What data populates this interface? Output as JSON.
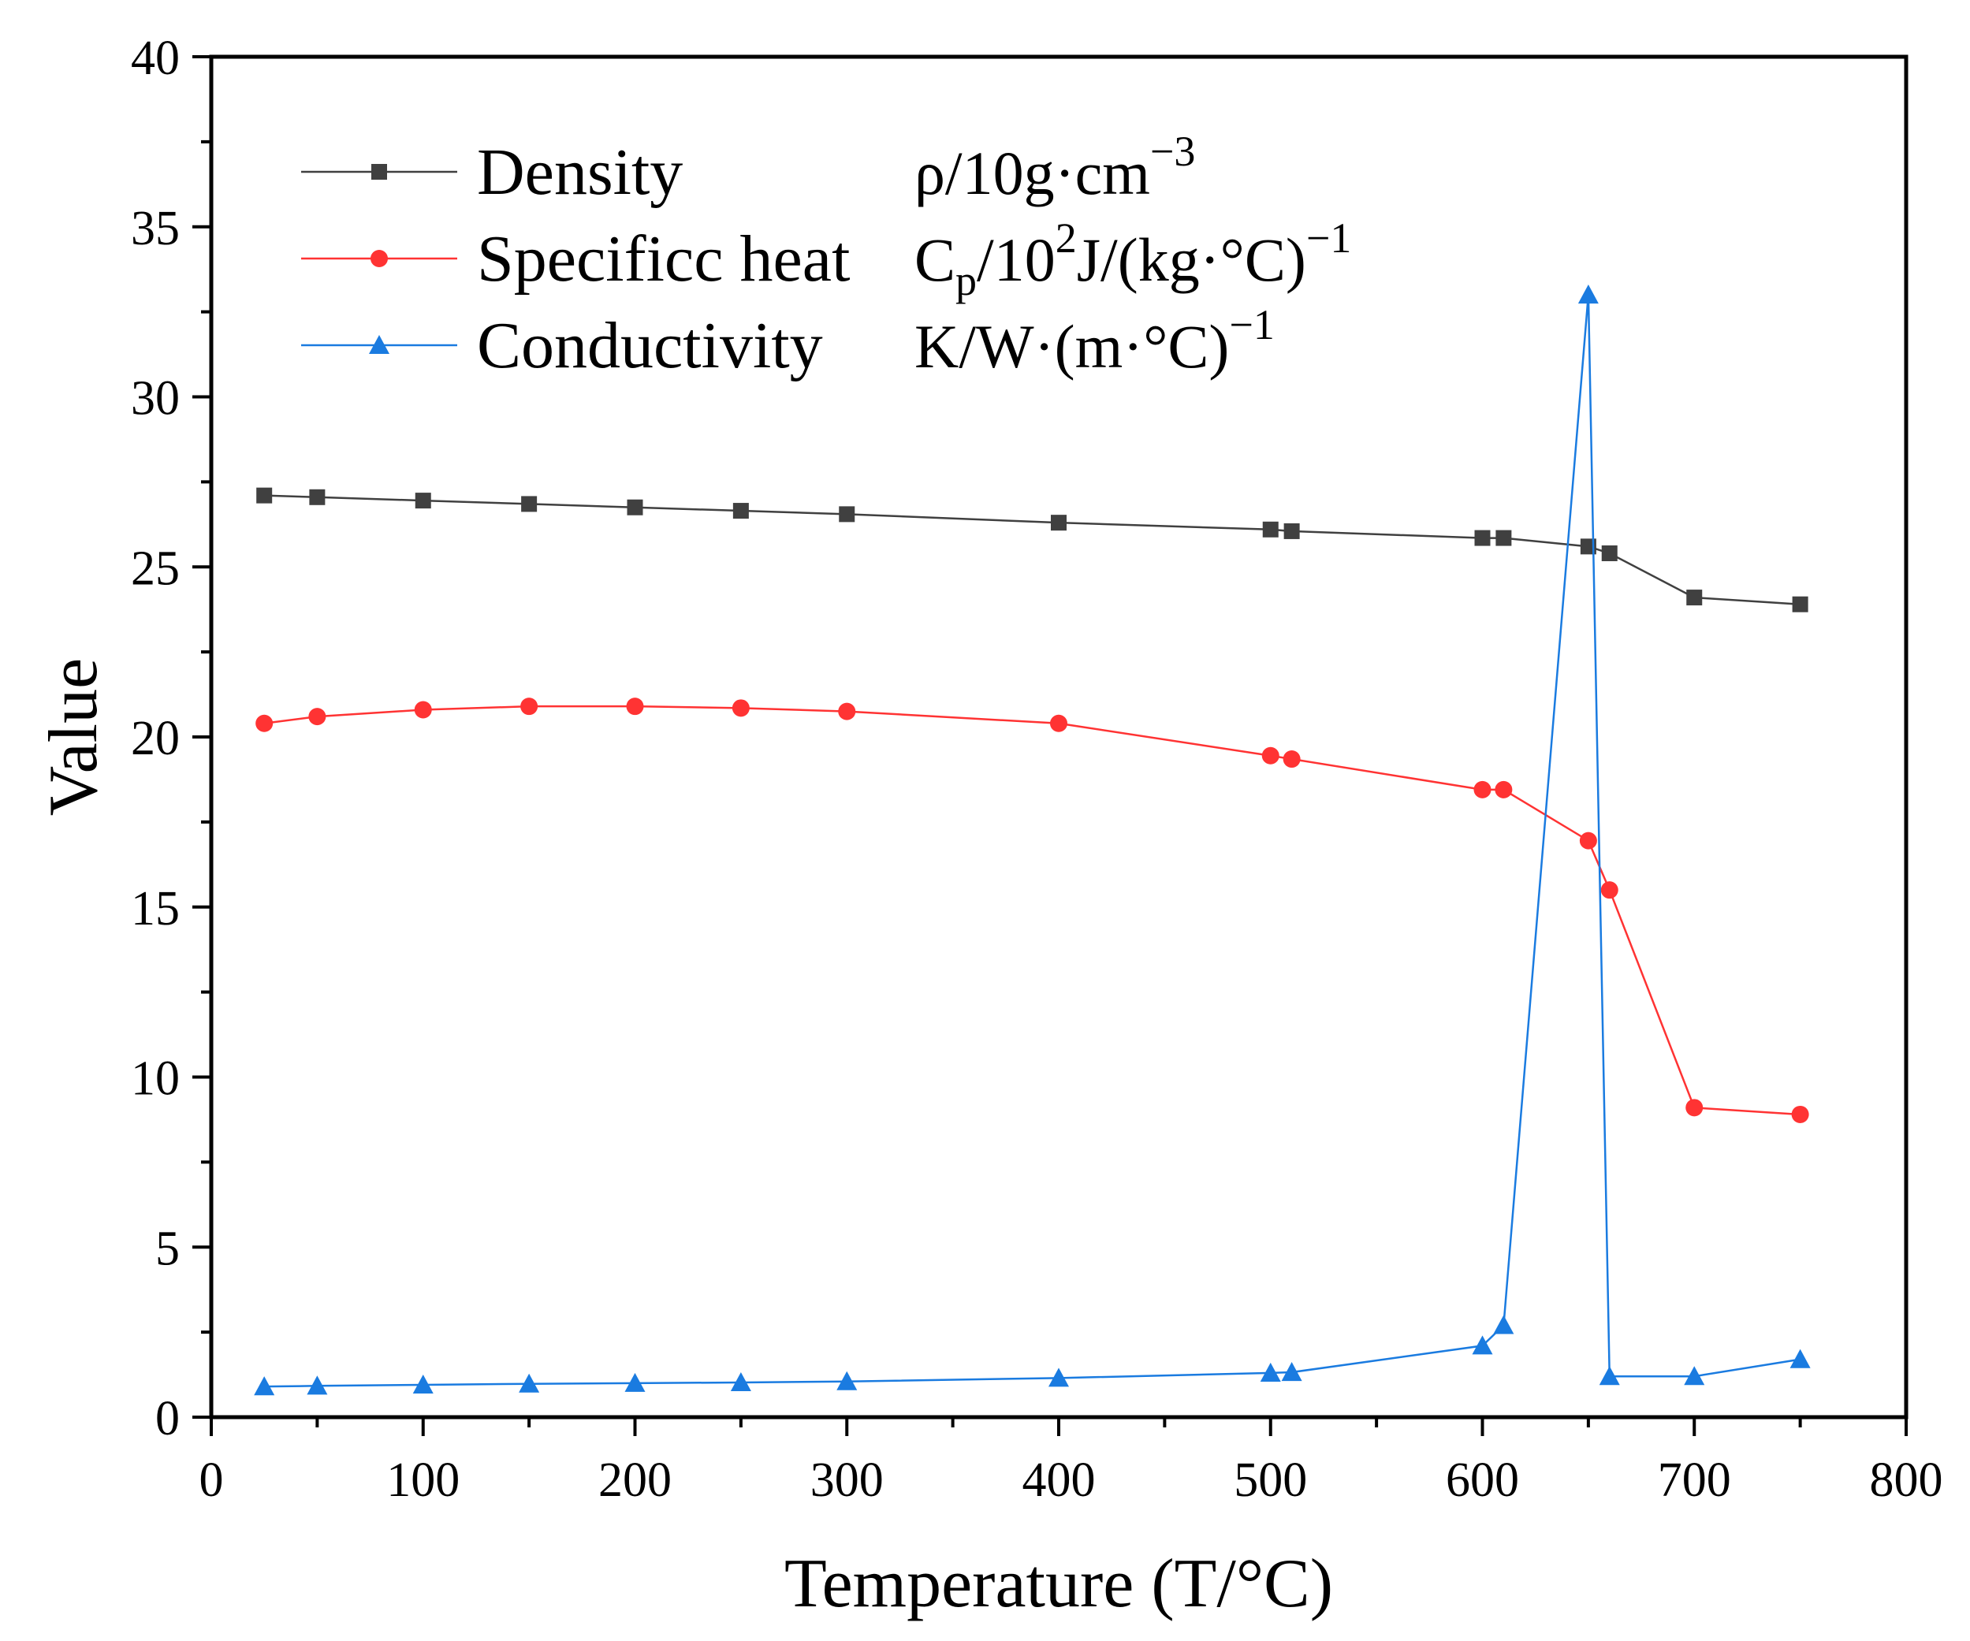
{
  "chart_data": {
    "type": "line",
    "xlabel": "Temperature (T/°C)",
    "ylabel": "Value",
    "xlim": [
      0,
      800
    ],
    "ylim": [
      0,
      40
    ],
    "x_ticks": [
      0,
      100,
      200,
      300,
      400,
      500,
      600,
      700,
      800
    ],
    "y_ticks": [
      0,
      5,
      10,
      15,
      20,
      25,
      30,
      35,
      40
    ],
    "grid": false,
    "legend_position": "top-left",
    "x": [
      25,
      50,
      100,
      150,
      200,
      250,
      300,
      400,
      500,
      510,
      600,
      610,
      650,
      660,
      700,
      750
    ],
    "series": [
      {
        "name": "Density",
        "unit": {
          "base": "ρ/10g·cm",
          "sup": "−3"
        },
        "color": "#404040",
        "marker": "square",
        "values": [
          27.1,
          27.05,
          26.95,
          26.85,
          26.75,
          26.65,
          26.55,
          26.3,
          26.1,
          26.05,
          25.85,
          25.85,
          25.6,
          25.4,
          24.1,
          23.9
        ]
      },
      {
        "name": "Specificc heat",
        "unit": {
          "base": "C",
          "sub": "p",
          "mid": "/10",
          "sup": "2",
          "mid2": "J/(kg·°C)",
          "sup2": "−1"
        },
        "color": "#ff3333",
        "marker": "circle",
        "values": [
          20.4,
          20.6,
          20.8,
          20.9,
          20.9,
          20.85,
          20.75,
          20.4,
          19.45,
          19.35,
          18.45,
          18.45,
          16.95,
          15.5,
          9.1,
          8.9
        ]
      },
      {
        "name": "Conductivity",
        "unit": {
          "base": "K/W·(m·°C)",
          "sup": "−1"
        },
        "color": "#1a7be0",
        "marker": "triangle",
        "values": [
          0.9,
          0.92,
          0.95,
          0.98,
          1.0,
          1.02,
          1.05,
          1.15,
          1.3,
          1.32,
          2.1,
          2.7,
          33.0,
          1.2,
          1.2,
          1.7
        ]
      }
    ]
  }
}
